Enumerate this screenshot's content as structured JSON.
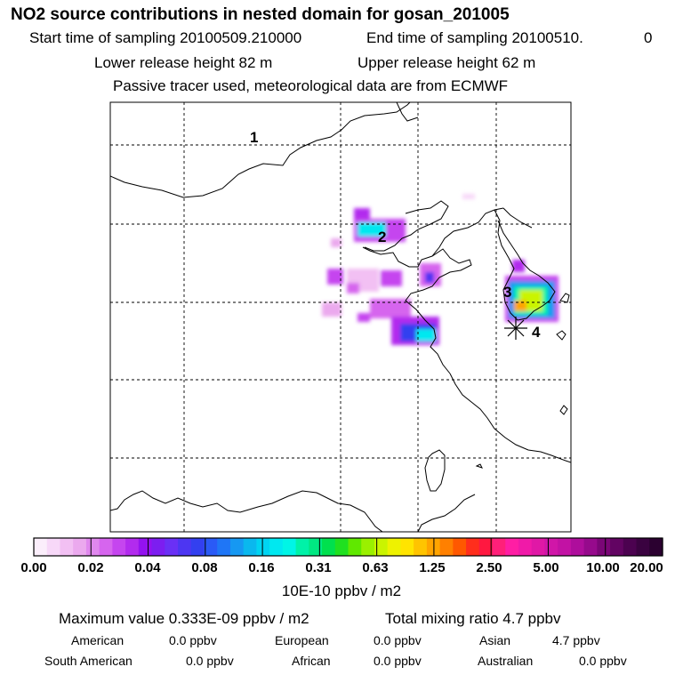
{
  "header": {
    "title": "NO2 source contributions in nested domain for gosan_201005",
    "start_label": "Start time of sampling 20100509.210000",
    "end_label": "End time of sampling 20100510.",
    "end_suffix": "0",
    "lower_release": "Lower release height   82 m",
    "upper_release": "Upper release height   62 m",
    "tracer_note": "Passive tracer used, meteorological data are from ECMWF"
  },
  "map": {
    "region_labels": [
      "4",
      "3",
      "2",
      "1"
    ],
    "receptor_marker": "asterisk"
  },
  "colorbar": {
    "unit": "10E-10 ppbv / m2",
    "ticks": [
      "0.00",
      "0.02",
      "0.04",
      "0.08",
      "0.16",
      "0.31",
      "0.63",
      "1.25",
      "2.50",
      "5.00",
      "10.00",
      "20.00"
    ],
    "colors": [
      "#fbeefb",
      "#f7d8f8",
      "#f2c0f3",
      "#eba9ee",
      "#e088ee",
      "#d665ee",
      "#c545ef",
      "#b22bee",
      "#9412f0",
      "#7c1ef0",
      "#6a30f5",
      "#4d36f2",
      "#3340f0",
      "#2a5af6",
      "#1f76f6",
      "#1698f2",
      "#0ab8ee",
      "#00d4f2",
      "#00e8f0",
      "#00f5e6",
      "#00f2a8",
      "#00e882",
      "#00e04e",
      "#20e020",
      "#60e800",
      "#9af000",
      "#caf400",
      "#eef200",
      "#ffe400",
      "#ffc400",
      "#ffa400",
      "#ff8000",
      "#ff5800",
      "#ff2e1c",
      "#ff1840",
      "#ff2079",
      "#ff1ea4",
      "#f01aa8",
      "#e018a6",
      "#d016a8",
      "#c212a4",
      "#ae0e9c",
      "#960a8c",
      "#7a0676",
      "#620462",
      "#4c0250",
      "#3a0240",
      "#2b0130"
    ]
  },
  "summary": {
    "max_value": "Maximum value  0.333E-09 ppbv / m2",
    "total_mixing": "Total mixing ratio       4.7 ppbv",
    "american_label": "American",
    "american_value": "0.0 ppbv",
    "european_label": "European",
    "european_value": "0.0 ppbv",
    "asian_label": "Asian",
    "asian_value": "4.7 ppbv",
    "south_american_label": "South American",
    "south_american_value": "0.0 ppbv",
    "african_label": "African",
    "african_value": "0.0 ppbv",
    "australian_label": "Australian",
    "australian_value": "0.0 ppbv"
  }
}
